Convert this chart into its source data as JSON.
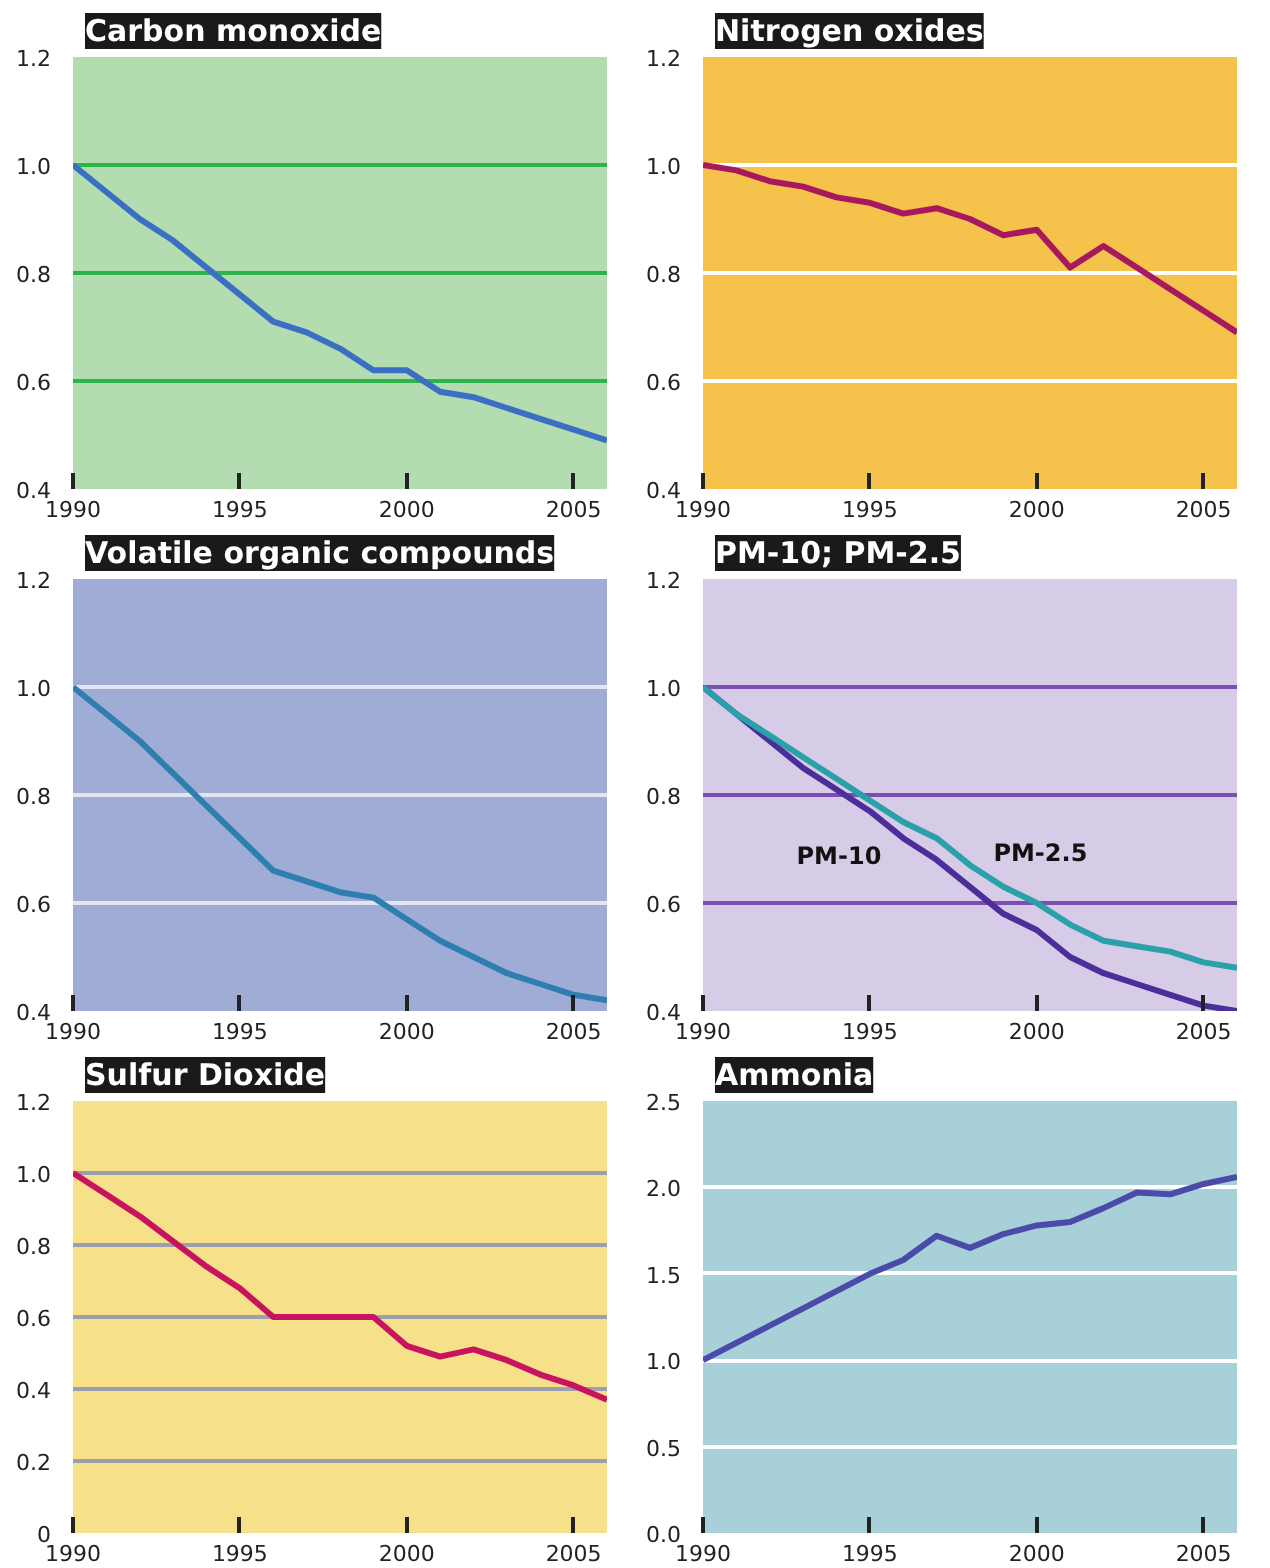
{
  "chart_data": [
    {
      "type": "line",
      "title": "Carbon monoxide",
      "x": [
        1990,
        1991,
        1992,
        1993,
        1994,
        1995,
        1996,
        1997,
        1998,
        1999,
        2000,
        2001,
        2002,
        2003,
        2004,
        2005,
        2006
      ],
      "xlim": [
        1990,
        2006
      ],
      "xticks": [
        1990,
        1995,
        2000,
        2005
      ],
      "ylim": [
        0.4,
        1.2
      ],
      "yticks": [
        0.4,
        0.6,
        0.8,
        {
          "value": 1,
          "label": "1.0"
        },
        1.2
      ],
      "grid": "y",
      "tick_labels": true,
      "series": [
        {
          "color": "#3a6fc4",
          "values": [
            1.0,
            0.95,
            0.9,
            0.86,
            0.81,
            0.76,
            0.71,
            0.69,
            0.66,
            0.62,
            0.62,
            0.58,
            0.57,
            0.55,
            0.53,
            0.51,
            0.49
          ]
        }
      ]
    },
    {
      "type": "line",
      "title": "Nitrogen oxides",
      "x": [
        1990,
        1991,
        1992,
        1993,
        1994,
        1995,
        1996,
        1997,
        1998,
        1999,
        2000,
        2001,
        2002,
        2003,
        2004,
        2005,
        2006
      ],
      "xlim": [
        1990,
        2006
      ],
      "xticks": [
        1990,
        1995,
        2000,
        2005
      ],
      "ylim": [
        0.4,
        1.2
      ],
      "yticks": [
        0.4,
        0.6,
        0.8,
        {
          "value": 1,
          "label": "1.0"
        },
        1.2
      ],
      "grid": "y",
      "series": [
        {
          "color": "#a8185e",
          "values": [
            1.0,
            0.99,
            0.97,
            0.96,
            0.94,
            0.93,
            0.91,
            0.92,
            0.9,
            0.87,
            0.88,
            0.81,
            0.85,
            0.81,
            0.77,
            0.73,
            0.69
          ]
        }
      ]
    },
    {
      "type": "line",
      "title": "Volatile organic compounds",
      "x": [
        1990,
        1991,
        1992,
        1993,
        1994,
        1995,
        1996,
        1997,
        1998,
        1999,
        2000,
        2001,
        2002,
        2003,
        2004,
        2005,
        2006
      ],
      "xlim": [
        1990,
        2006
      ],
      "xticks": [
        1990,
        1995,
        2000,
        2005
      ],
      "ylim": [
        0.4,
        1.2
      ],
      "yticks": [
        0.4,
        0.6,
        0.8,
        {
          "value": 1,
          "label": "1.0"
        },
        1.2
      ],
      "grid": "y",
      "series": [
        {
          "color": "#2e7fb0",
          "values": [
            1.0,
            0.95,
            0.9,
            0.84,
            0.78,
            0.72,
            0.66,
            0.64,
            0.62,
            0.61,
            0.57,
            0.53,
            0.5,
            0.47,
            0.45,
            0.43,
            0.42
          ]
        }
      ]
    },
    {
      "type": "line",
      "title": "PM-10; PM-2.5",
      "x": [
        1990,
        1991,
        1992,
        1993,
        1994,
        1995,
        1996,
        1997,
        1998,
        1999,
        2000,
        2001,
        2002,
        2003,
        2004,
        2005,
        2006
      ],
      "xlim": [
        1990,
        2006
      ],
      "xticks": [
        1990,
        1995,
        2000,
        2005
      ],
      "ylim": [
        0.4,
        1.2
      ],
      "yticks": [
        0.4,
        0.6,
        0.8,
        {
          "value": 1,
          "label": "1.0"
        },
        1.2
      ],
      "grid": "y",
      "series": [
        {
          "name": "PM-10",
          "color": "#4b2e9a",
          "values": [
            1.0,
            0.95,
            0.9,
            0.85,
            0.81,
            0.77,
            0.72,
            0.68,
            0.63,
            0.58,
            0.55,
            0.5,
            0.47,
            0.45,
            0.43,
            0.41,
            0.4
          ]
        },
        {
          "name": "PM-2.5",
          "color": "#2aa0a8",
          "values": [
            1.0,
            0.95,
            0.91,
            0.87,
            0.83,
            0.79,
            0.75,
            0.72,
            0.67,
            0.63,
            0.6,
            0.56,
            0.53,
            0.52,
            0.51,
            0.49,
            0.48
          ]
        }
      ]
    },
    {
      "type": "line",
      "title": "Sulfur Dioxide",
      "x": [
        1990,
        1991,
        1992,
        1993,
        1994,
        1995,
        1996,
        1997,
        1998,
        1999,
        2000,
        2001,
        2002,
        2003,
        2004,
        2005,
        2006
      ],
      "xlim": [
        1990,
        2006
      ],
      "xticks": [
        1990,
        1995,
        2000,
        2005
      ],
      "ylim": [
        0,
        1.2
      ],
      "yticks": [
        0,
        0.2,
        0.4,
        0.6,
        0.8,
        {
          "value": 1,
          "label": "1.0"
        },
        1.2
      ],
      "grid": "y",
      "series": [
        {
          "color": "#c8145e",
          "values": [
            1.0,
            0.94,
            0.88,
            0.81,
            0.74,
            0.68,
            0.6,
            0.6,
            0.6,
            0.6,
            0.52,
            0.49,
            0.51,
            0.48,
            0.44,
            0.41,
            0.37
          ]
        }
      ]
    },
    {
      "type": "line",
      "title": "Ammonia",
      "x": [
        1990,
        1991,
        1992,
        1993,
        1994,
        1995,
        1996,
        1997,
        1998,
        1999,
        2000,
        2001,
        2002,
        2003,
        2004,
        2005,
        2006
      ],
      "xlim": [
        1990,
        2006
      ],
      "xticks": [
        1990,
        1995,
        2000,
        2005
      ],
      "ylim": [
        0,
        2.5
      ],
      "yticks": [
        {
          "value": 0,
          "label": "0.0"
        },
        0.5,
        {
          "value": 1,
          "label": "1.0"
        },
        1.5,
        {
          "value": 2,
          "label": "2.0"
        },
        2.5
      ],
      "grid": "y",
      "series": [
        {
          "color": "#4a4aa8",
          "values": [
            1.0,
            1.1,
            1.2,
            1.3,
            1.4,
            1.5,
            1.58,
            1.72,
            1.65,
            1.73,
            1.78,
            1.8,
            1.88,
            1.97,
            1.96,
            2.02,
            2.06
          ]
        }
      ]
    }
  ]
}
